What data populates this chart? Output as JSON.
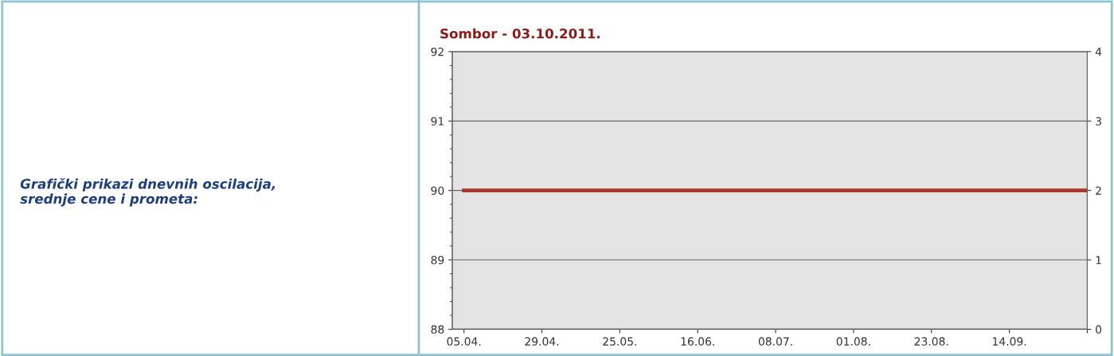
{
  "chart_data": {
    "type": "line",
    "title": "Sombor - 03.10.2011.",
    "annotations": [
      "Grafički prikazi dnevnih oscilacija,\nsrednje cene i prometa:"
    ],
    "categories": [
      "05.04.",
      "29.04.",
      "25.05.",
      "16.06.",
      "08.07.",
      "01.08.",
      "23.08.",
      "14.09.",
      null
    ],
    "series": [
      {
        "color": "#a8382c",
        "values": [
          90,
          90,
          90,
          90,
          90,
          90,
          90,
          90,
          90
        ]
      }
    ],
    "ylim": [
      88,
      92
    ],
    "yticks": [
      88,
      89,
      90,
      91,
      92
    ],
    "y2lim": [
      0,
      4
    ],
    "y2ticks": [
      0,
      1,
      2,
      3,
      4
    ],
    "grid": "y",
    "legend": false,
    "marker": "none",
    "line_style": "solid"
  }
}
